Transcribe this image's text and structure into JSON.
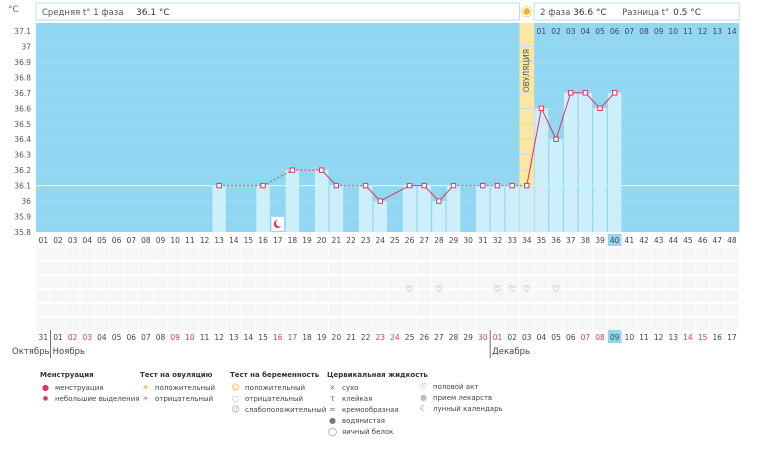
{
  "colors": {
    "chart_bg": "#92d7f2",
    "bar_fill": "#cdeefb",
    "ovulation": "#fbe7a2",
    "line": "#e0345a",
    "coverline": "#f2f2a0",
    "red_text": "#e0345a",
    "highlight_cell": "#92d7f2",
    "grid_cells": "#f6f6f6"
  },
  "header": {
    "unit": "°C",
    "phase1_label": "Средняя t° 1 фаза",
    "phase1_value": "36.1 °C",
    "phase2_label": "2 фаза",
    "phase2_value": "36.6 °C",
    "diff_label": "Разница t°",
    "diff_value": "0.5 °C",
    "sun_icon": "sun-icon"
  },
  "ovulation_label": "ОВУЛЯЦИЯ",
  "post_ov_day_labels": [
    "01",
    "02",
    "03",
    "04",
    "05",
    "06",
    "07",
    "08",
    "09",
    "10",
    "11",
    "12",
    "13",
    "14"
  ],
  "chart_data": {
    "type": "line",
    "y_ticks": [
      "35.8",
      "35.9",
      "36",
      "36.1",
      "36.2",
      "36.3",
      "36.4",
      "36.5",
      "36.6",
      "36.7",
      "36.8",
      "36.9",
      "37",
      "37.1"
    ],
    "ylim": [
      35.8,
      37.1
    ],
    "coverline": 36.1,
    "ovulation_day": 34,
    "cycle_days": [
      "01",
      "02",
      "03",
      "04",
      "05",
      "06",
      "07",
      "08",
      "09",
      "10",
      "11",
      "12",
      "13",
      "14",
      "15",
      "16",
      "17",
      "18",
      "19",
      "20",
      "21",
      "22",
      "23",
      "24",
      "25",
      "26",
      "27",
      "28",
      "29",
      "30",
      "31",
      "32",
      "33",
      "34",
      "35",
      "36",
      "37",
      "38",
      "39",
      "40",
      "41",
      "42",
      "43",
      "44",
      "45",
      "46",
      "47",
      "48"
    ],
    "highlight_day": "40",
    "temperatures": [
      {
        "day": 13,
        "temp": 36.1
      },
      {
        "day": 16,
        "temp": 36.1
      },
      {
        "day": 18,
        "temp": 36.2
      },
      {
        "day": 20,
        "temp": 36.2
      },
      {
        "day": 21,
        "temp": 36.1
      },
      {
        "day": 23,
        "temp": 36.1
      },
      {
        "day": 24,
        "temp": 36.0
      },
      {
        "day": 26,
        "temp": 36.1
      },
      {
        "day": 27,
        "temp": 36.1
      },
      {
        "day": 28,
        "temp": 36.0
      },
      {
        "day": 29,
        "temp": 36.1
      },
      {
        "day": 31,
        "temp": 36.1
      },
      {
        "day": 32,
        "temp": 36.1
      },
      {
        "day": 33,
        "temp": 36.1
      },
      {
        "day": 34,
        "temp": 36.1
      },
      {
        "day": 35,
        "temp": 36.6
      },
      {
        "day": 36,
        "temp": 36.4
      },
      {
        "day": 37,
        "temp": 36.7
      },
      {
        "day": 38,
        "temp": 36.7
      },
      {
        "day": 39,
        "temp": 36.6
      },
      {
        "day": 40,
        "temp": 36.7
      }
    ],
    "dashed_segments": [
      [
        13,
        16
      ],
      [
        16,
        18
      ],
      [
        18,
        20
      ],
      [
        21,
        23
      ],
      [
        29,
        31
      ],
      [
        31,
        32
      ],
      [
        32,
        33
      ],
      [
        33,
        34
      ]
    ],
    "moon_days": [
      17
    ],
    "intercourse_days": [
      26,
      28,
      32,
      33,
      34,
      36
    ],
    "dates": [
      {
        "d": "31",
        "red": false
      },
      {
        "d": "01",
        "red": false
      },
      {
        "d": "02",
        "red": true
      },
      {
        "d": "03",
        "red": true
      },
      {
        "d": "04",
        "red": false
      },
      {
        "d": "05",
        "red": false
      },
      {
        "d": "06",
        "red": false
      },
      {
        "d": "07",
        "red": false
      },
      {
        "d": "08",
        "red": false
      },
      {
        "d": "09",
        "red": true
      },
      {
        "d": "10",
        "red": true
      },
      {
        "d": "11",
        "red": false
      },
      {
        "d": "12",
        "red": false
      },
      {
        "d": "13",
        "red": false
      },
      {
        "d": "14",
        "red": false
      },
      {
        "d": "15",
        "red": false
      },
      {
        "d": "16",
        "red": true
      },
      {
        "d": "17",
        "red": true
      },
      {
        "d": "18",
        "red": false
      },
      {
        "d": "19",
        "red": false
      },
      {
        "d": "20",
        "red": false
      },
      {
        "d": "21",
        "red": false
      },
      {
        "d": "22",
        "red": false
      },
      {
        "d": "23",
        "red": true
      },
      {
        "d": "24",
        "red": true
      },
      {
        "d": "25",
        "red": false
      },
      {
        "d": "26",
        "red": false
      },
      {
        "d": "27",
        "red": false
      },
      {
        "d": "28",
        "red": false
      },
      {
        "d": "29",
        "red": false
      },
      {
        "d": "30",
        "red": true
      },
      {
        "d": "01",
        "red": true
      },
      {
        "d": "02",
        "red": false
      },
      {
        "d": "03",
        "red": false
      },
      {
        "d": "04",
        "red": false
      },
      {
        "d": "05",
        "red": false
      },
      {
        "d": "06",
        "red": false
      },
      {
        "d": "07",
        "red": true
      },
      {
        "d": "08",
        "red": true
      },
      {
        "d": "09",
        "red": false
      },
      {
        "d": "10",
        "red": false
      },
      {
        "d": "11",
        "red": false
      },
      {
        "d": "12",
        "red": false
      },
      {
        "d": "13",
        "red": false
      },
      {
        "d": "14",
        "red": true
      },
      {
        "d": "15",
        "red": true
      },
      {
        "d": "16",
        "red": false
      },
      {
        "d": "17",
        "red": false
      }
    ],
    "highlight_date_index": 39,
    "months": [
      {
        "name": "Октябрь",
        "start_index": 0
      },
      {
        "name": "Ноябрь",
        "start_index": 1
      },
      {
        "name": "Декабрь",
        "start_index": 31
      }
    ]
  },
  "legend": {
    "menstruation": {
      "title": "Менструация",
      "items": [
        {
          "icon": "drop-icon",
          "label": "менструация"
        },
        {
          "icon": "small-drop-icon",
          "label": "небольшие выделения"
        }
      ]
    },
    "ovulation_test": {
      "title": "Тест на овуляцию",
      "items": [
        {
          "icon": "sun-positive-icon",
          "label": "положительный"
        },
        {
          "icon": "sun-negative-icon",
          "label": "отрицательный"
        }
      ]
    },
    "pregnancy_test": {
      "title": "Тест на беременность",
      "items": [
        {
          "icon": "smile-positive-icon",
          "label": "положительный"
        },
        {
          "icon": "circle-negative-icon",
          "label": "отрицательный"
        },
        {
          "icon": "smile-weak-icon",
          "label": "слабоположительный"
        }
      ]
    },
    "cervical_fluid": {
      "title": "Цервикальная жидкость",
      "items": [
        {
          "icon": "dry-icon",
          "label": "сухо"
        },
        {
          "icon": "sticky-icon",
          "label": "клейкая"
        },
        {
          "icon": "creamy-icon",
          "label": "кремообразная"
        },
        {
          "icon": "watery-icon",
          "label": "водянистая"
        },
        {
          "icon": "eggwhite-icon",
          "label": "яичный белок"
        }
      ]
    },
    "other": {
      "items": [
        {
          "icon": "heart-icon",
          "label": "половой акт"
        },
        {
          "icon": "pill-icon",
          "label": "прием лекарств"
        },
        {
          "icon": "moon-icon",
          "label": "лунный календарь"
        }
      ]
    }
  }
}
